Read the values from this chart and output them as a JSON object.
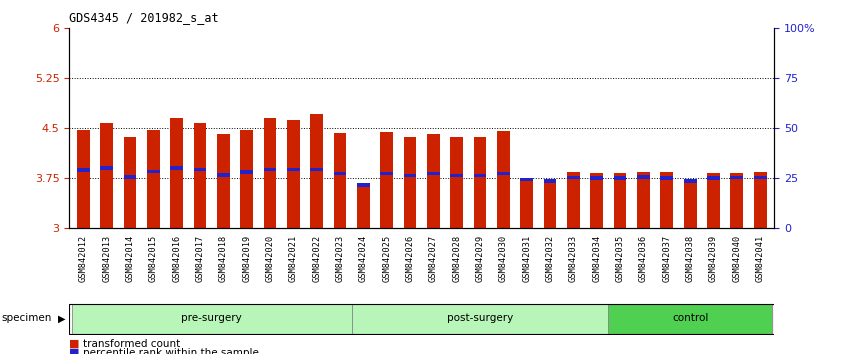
{
  "title": "GDS4345 / 201982_s_at",
  "samples": [
    "GSM842012",
    "GSM842013",
    "GSM842014",
    "GSM842015",
    "GSM842016",
    "GSM842017",
    "GSM842018",
    "GSM842019",
    "GSM842020",
    "GSM842021",
    "GSM842022",
    "GSM842023",
    "GSM842024",
    "GSM842025",
    "GSM842026",
    "GSM842027",
    "GSM842028",
    "GSM842029",
    "GSM842030",
    "GSM842031",
    "GSM842032",
    "GSM842033",
    "GSM842034",
    "GSM842035",
    "GSM842036",
    "GSM842037",
    "GSM842038",
    "GSM842039",
    "GSM842040",
    "GSM842041"
  ],
  "transformed_count": [
    4.47,
    4.58,
    4.37,
    4.48,
    4.65,
    4.58,
    4.41,
    4.47,
    4.65,
    4.62,
    4.72,
    4.43,
    3.62,
    4.44,
    4.37,
    4.42,
    4.37,
    4.37,
    4.46,
    3.74,
    3.7,
    3.84,
    3.83,
    3.83,
    3.85,
    3.84,
    3.71,
    3.83,
    3.83,
    3.85
  ],
  "percentile_rank": [
    3.87,
    3.9,
    3.77,
    3.85,
    3.9,
    3.88,
    3.8,
    3.84,
    3.88,
    3.88,
    3.88,
    3.82,
    3.65,
    3.82,
    3.79,
    3.82,
    3.79,
    3.79,
    3.82,
    3.73,
    3.71,
    3.76,
    3.75,
    3.75,
    3.77,
    3.75,
    3.71,
    3.75,
    3.76,
    3.76
  ],
  "groups": [
    {
      "name": "pre-surgery",
      "start": 0,
      "end": 12
    },
    {
      "name": "post-surgery",
      "start": 12,
      "end": 23
    },
    {
      "name": "control",
      "start": 23,
      "end": 30
    }
  ],
  "group_colors": [
    "#b8f5b8",
    "#b8f5b8",
    "#50d050"
  ],
  "ylim": [
    3.0,
    6.0
  ],
  "yticks": [
    3.0,
    3.75,
    4.5,
    5.25,
    6.0
  ],
  "ytick_labels": [
    "3",
    "3.75",
    "4.5",
    "5.25",
    "6"
  ],
  "grid_lines": [
    3.75,
    4.5,
    5.25
  ],
  "right_yticks_pct": [
    0,
    25,
    50,
    75,
    100
  ],
  "right_ytick_labels": [
    "0",
    "25",
    "50",
    "75",
    "100%"
  ],
  "bar_color": "#CC2200",
  "blue_color": "#2222CC",
  "bar_width": 0.55,
  "axis_label_color_left": "#CC2200",
  "axis_label_color_right": "#2222CC"
}
